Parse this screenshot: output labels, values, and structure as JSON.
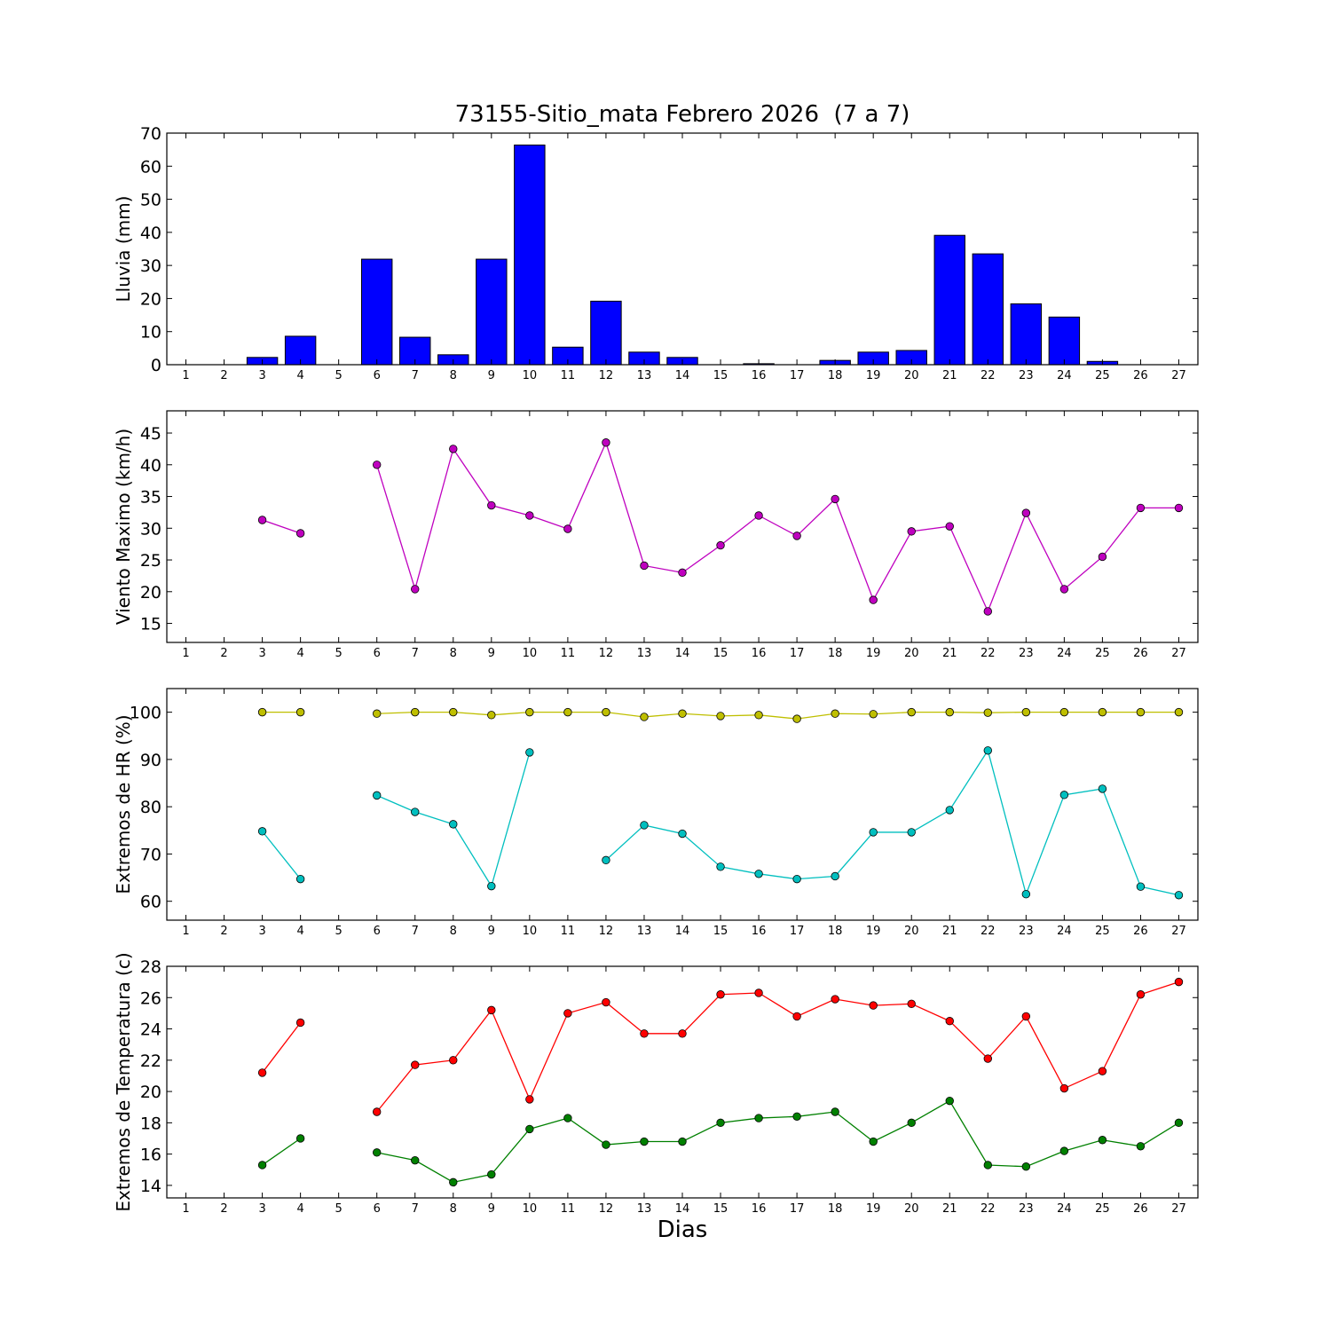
{
  "title": "73155-Sitio_mata Febrero 2026  (7 a 7)",
  "xlabel": "Dias",
  "colors": {
    "rain": "#0000ff",
    "wind": "#bf00bf",
    "hr_max": "#bfbf00",
    "hr_min": "#00bfbf",
    "temp_max": "#ff0000",
    "temp_min": "#008000"
  },
  "chart_data": [
    {
      "type": "bar",
      "ylabel": "Lluvia (mm)",
      "ylim": [
        0,
        70
      ],
      "yticks": [
        0,
        10,
        20,
        30,
        40,
        50,
        60,
        70
      ],
      "categories": [
        1,
        2,
        3,
        4,
        5,
        6,
        7,
        8,
        9,
        10,
        11,
        12,
        13,
        14,
        15,
        16,
        17,
        18,
        19,
        20,
        21,
        22,
        23,
        24,
        25,
        26,
        27
      ],
      "series": [
        {
          "color": "#0000ff",
          "values": [
            0,
            0,
            2.2,
            8.6,
            0,
            31.9,
            8.3,
            3.0,
            31.9,
            66.4,
            5.3,
            19.2,
            3.8,
            2.2,
            0,
            0.3,
            0,
            1.3,
            3.8,
            4.3,
            39.1,
            33.5,
            18.4,
            14.4,
            1.0,
            0,
            0
          ]
        }
      ]
    },
    {
      "type": "line",
      "ylabel": "Viento Maximo (km/h)",
      "ylim": [
        12,
        48.5
      ],
      "yticks": [
        15,
        20,
        25,
        30,
        35,
        40,
        45
      ],
      "x": [
        1,
        2,
        3,
        4,
        5,
        6,
        7,
        8,
        9,
        10,
        11,
        12,
        13,
        14,
        15,
        16,
        17,
        18,
        19,
        20,
        21,
        22,
        23,
        24,
        25,
        26,
        27
      ],
      "series": [
        {
          "color": "#bf00bf",
          "values": [
            null,
            null,
            31.3,
            29.2,
            null,
            40.0,
            20.4,
            42.5,
            33.6,
            32.0,
            29.9,
            43.5,
            24.1,
            23.0,
            27.3,
            32.0,
            28.8,
            34.6,
            18.7,
            29.5,
            30.3,
            16.9,
            32.4,
            20.4,
            25.5,
            33.2,
            33.2
          ]
        }
      ]
    },
    {
      "type": "line",
      "ylabel": "Extremos de HR (%)",
      "ylim": [
        56,
        105
      ],
      "yticks": [
        60,
        70,
        80,
        90,
        100
      ],
      "x": [
        1,
        2,
        3,
        4,
        5,
        6,
        7,
        8,
        9,
        10,
        11,
        12,
        13,
        14,
        15,
        16,
        17,
        18,
        19,
        20,
        21,
        22,
        23,
        24,
        25,
        26,
        27
      ],
      "series": [
        {
          "color": "#bfbf00",
          "values": [
            null,
            null,
            100,
            100,
            null,
            99.7,
            100,
            100,
            99.4,
            100,
            100,
            100,
            99.0,
            99.7,
            99.2,
            99.4,
            98.6,
            99.7,
            99.6,
            100,
            100,
            99.9,
            100,
            100,
            100,
            100,
            100
          ]
        },
        {
          "color": "#00bfbf",
          "values": [
            null,
            null,
            74.8,
            64.7,
            null,
            82.4,
            78.9,
            76.3,
            63.2,
            91.5,
            null,
            68.7,
            76.1,
            74.3,
            67.3,
            65.8,
            64.7,
            65.3,
            74.6,
            74.6,
            79.3,
            91.9,
            61.5,
            82.5,
            83.8,
            63.1,
            61.3
          ]
        }
      ]
    },
    {
      "type": "line",
      "ylabel": "Extremos de Temperatura (c)",
      "ylim": [
        13.2,
        28
      ],
      "yticks": [
        14,
        16,
        18,
        20,
        22,
        24,
        26,
        28
      ],
      "x": [
        1,
        2,
        3,
        4,
        5,
        6,
        7,
        8,
        9,
        10,
        11,
        12,
        13,
        14,
        15,
        16,
        17,
        18,
        19,
        20,
        21,
        22,
        23,
        24,
        25,
        26,
        27
      ],
      "series": [
        {
          "color": "#ff0000",
          "values": [
            null,
            null,
            21.2,
            24.4,
            null,
            18.7,
            21.7,
            22.0,
            25.2,
            19.5,
            25.0,
            25.7,
            23.7,
            23.7,
            26.2,
            26.3,
            24.8,
            25.9,
            25.5,
            25.6,
            24.5,
            22.1,
            24.8,
            20.2,
            21.3,
            26.2,
            27.0
          ]
        },
        {
          "color": "#008000",
          "values": [
            null,
            null,
            15.3,
            17.0,
            null,
            16.1,
            15.6,
            14.2,
            14.7,
            17.6,
            18.3,
            16.6,
            16.8,
            16.8,
            18.0,
            18.3,
            18.4,
            18.7,
            16.8,
            18.0,
            19.4,
            15.3,
            15.2,
            16.2,
            16.9,
            16.5,
            18.0
          ]
        }
      ]
    }
  ]
}
